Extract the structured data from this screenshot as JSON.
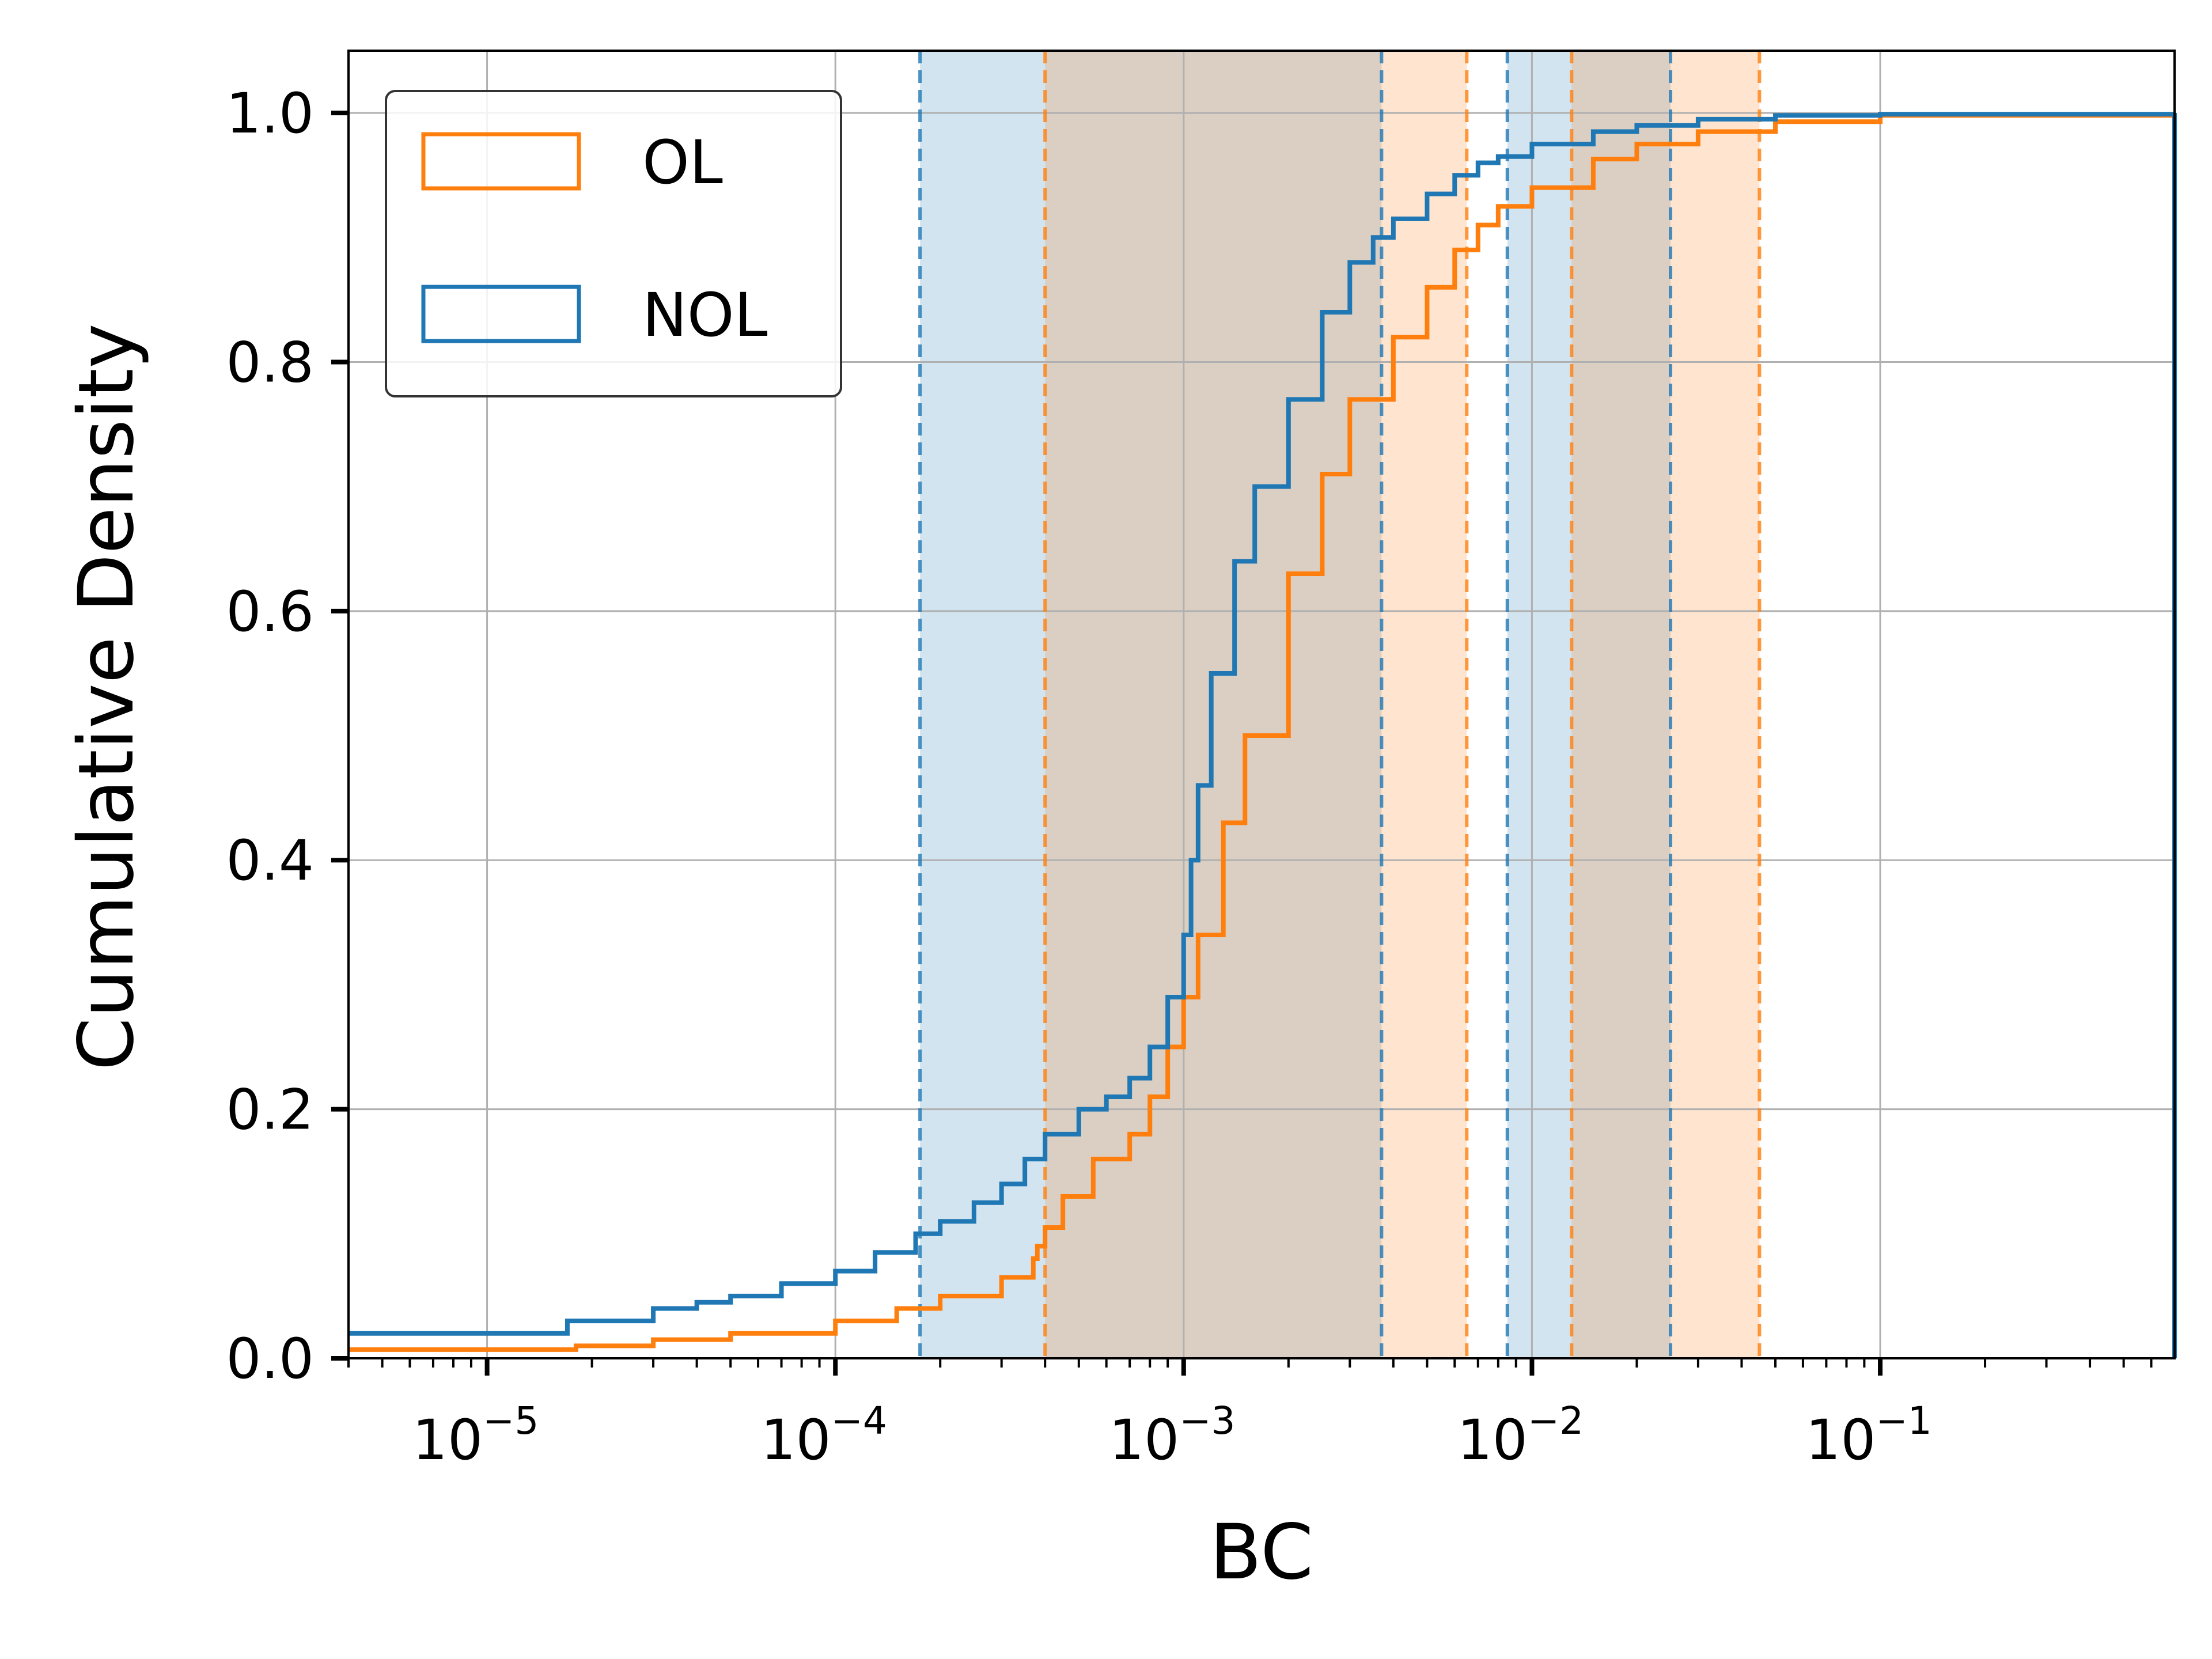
{
  "chart_data": {
    "type": "line",
    "subtype": "cumulative-step",
    "title": "",
    "xlabel": "BC",
    "ylabel": "Cumulative Density",
    "xscale": "log",
    "xlim": [
      4e-06,
      0.7
    ],
    "ylim": [
      0,
      1.05
    ],
    "grid": true,
    "legend_position": "top-left",
    "x_ticks": [
      {
        "value": 1e-05,
        "base": "10",
        "exp": "−5"
      },
      {
        "value": 0.0001,
        "base": "10",
        "exp": "−4"
      },
      {
        "value": 0.001,
        "base": "10",
        "exp": "−3"
      },
      {
        "value": 0.01,
        "base": "10",
        "exp": "−2"
      },
      {
        "value": 0.1,
        "base": "10",
        "exp": "−1"
      }
    ],
    "y_ticks": [
      {
        "value": 0.0,
        "label": "0.0"
      },
      {
        "value": 0.2,
        "label": "0.2"
      },
      {
        "value": 0.4,
        "label": "0.4"
      },
      {
        "value": 0.6,
        "label": "0.6"
      },
      {
        "value": 0.8,
        "label": "0.8"
      },
      {
        "value": 1.0,
        "label": "1.0"
      }
    ],
    "series": [
      {
        "name": "OL",
        "color": "#ff7f0e",
        "band_color": "#ffe6cc",
        "bands": [
          [
            0.0004,
            0.0065
          ],
          [
            0.013,
            0.045
          ]
        ],
        "dashed_lines": [
          0.0004,
          0.0065,
          0.013,
          0.045
        ],
        "x": [
          4e-06,
          1.8e-05,
          3e-05,
          5e-05,
          0.0001,
          0.00015,
          0.0002,
          0.0003,
          0.00037,
          0.00038,
          0.0004,
          0.00045,
          0.00055,
          0.0007,
          0.0008,
          0.0009,
          0.001,
          0.0011,
          0.0013,
          0.0015,
          0.002,
          0.0025,
          0.003,
          0.004,
          0.005,
          0.006,
          0.007,
          0.008,
          0.01,
          0.015,
          0.02,
          0.03,
          0.05,
          0.1,
          0.7
        ],
        "y": [
          0.007,
          0.01,
          0.015,
          0.02,
          0.03,
          0.04,
          0.05,
          0.065,
          0.08,
          0.09,
          0.105,
          0.13,
          0.16,
          0.18,
          0.21,
          0.25,
          0.29,
          0.34,
          0.43,
          0.5,
          0.63,
          0.71,
          0.77,
          0.82,
          0.86,
          0.89,
          0.91,
          0.925,
          0.94,
          0.963,
          0.975,
          0.985,
          0.993,
          0.998,
          1.0
        ]
      },
      {
        "name": "NOL",
        "color": "#1f77b4",
        "band_color": "#cfe2ef",
        "bands": [
          [
            0.000175,
            0.0037
          ],
          [
            0.0085,
            0.025
          ]
        ],
        "dashed_lines": [
          0.000175,
          0.0037,
          0.0085,
          0.025
        ],
        "x": [
          4e-06,
          1.7e-05,
          3e-05,
          4e-05,
          5e-05,
          7e-05,
          0.0001,
          0.00013,
          0.00017,
          0.0002,
          0.00025,
          0.0003,
          0.00035,
          0.0004,
          0.0005,
          0.0006,
          0.0007,
          0.0008,
          0.0009,
          0.001,
          0.00105,
          0.0011,
          0.0012,
          0.0014,
          0.0016,
          0.002,
          0.0025,
          0.003,
          0.0035,
          0.004,
          0.005,
          0.006,
          0.007,
          0.008,
          0.01,
          0.015,
          0.02,
          0.03,
          0.05,
          0.1,
          0.7
        ],
        "y": [
          0.02,
          0.03,
          0.04,
          0.045,
          0.05,
          0.06,
          0.07,
          0.085,
          0.1,
          0.11,
          0.125,
          0.14,
          0.16,
          0.18,
          0.2,
          0.21,
          0.225,
          0.25,
          0.29,
          0.34,
          0.4,
          0.46,
          0.55,
          0.64,
          0.7,
          0.77,
          0.84,
          0.88,
          0.9,
          0.915,
          0.935,
          0.95,
          0.96,
          0.965,
          0.975,
          0.985,
          0.99,
          0.995,
          0.998,
          0.999,
          1.0
        ]
      }
    ]
  }
}
